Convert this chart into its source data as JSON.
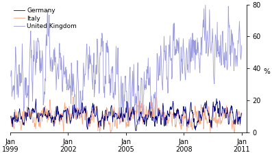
{
  "ylabel": "%",
  "ylim": [
    0,
    80
  ],
  "yticks": [
    0,
    20,
    40,
    60,
    80
  ],
  "xtick_years": [
    1999,
    2002,
    2005,
    2008,
    2011
  ],
  "germany_color": "#00007F",
  "italy_color": "#F5A47C",
  "uk_color": "#9999DD",
  "legend_labels": [
    "Germany",
    "Italy",
    "United Kingdom"
  ],
  "linewidth": 0.6,
  "seed": 42
}
